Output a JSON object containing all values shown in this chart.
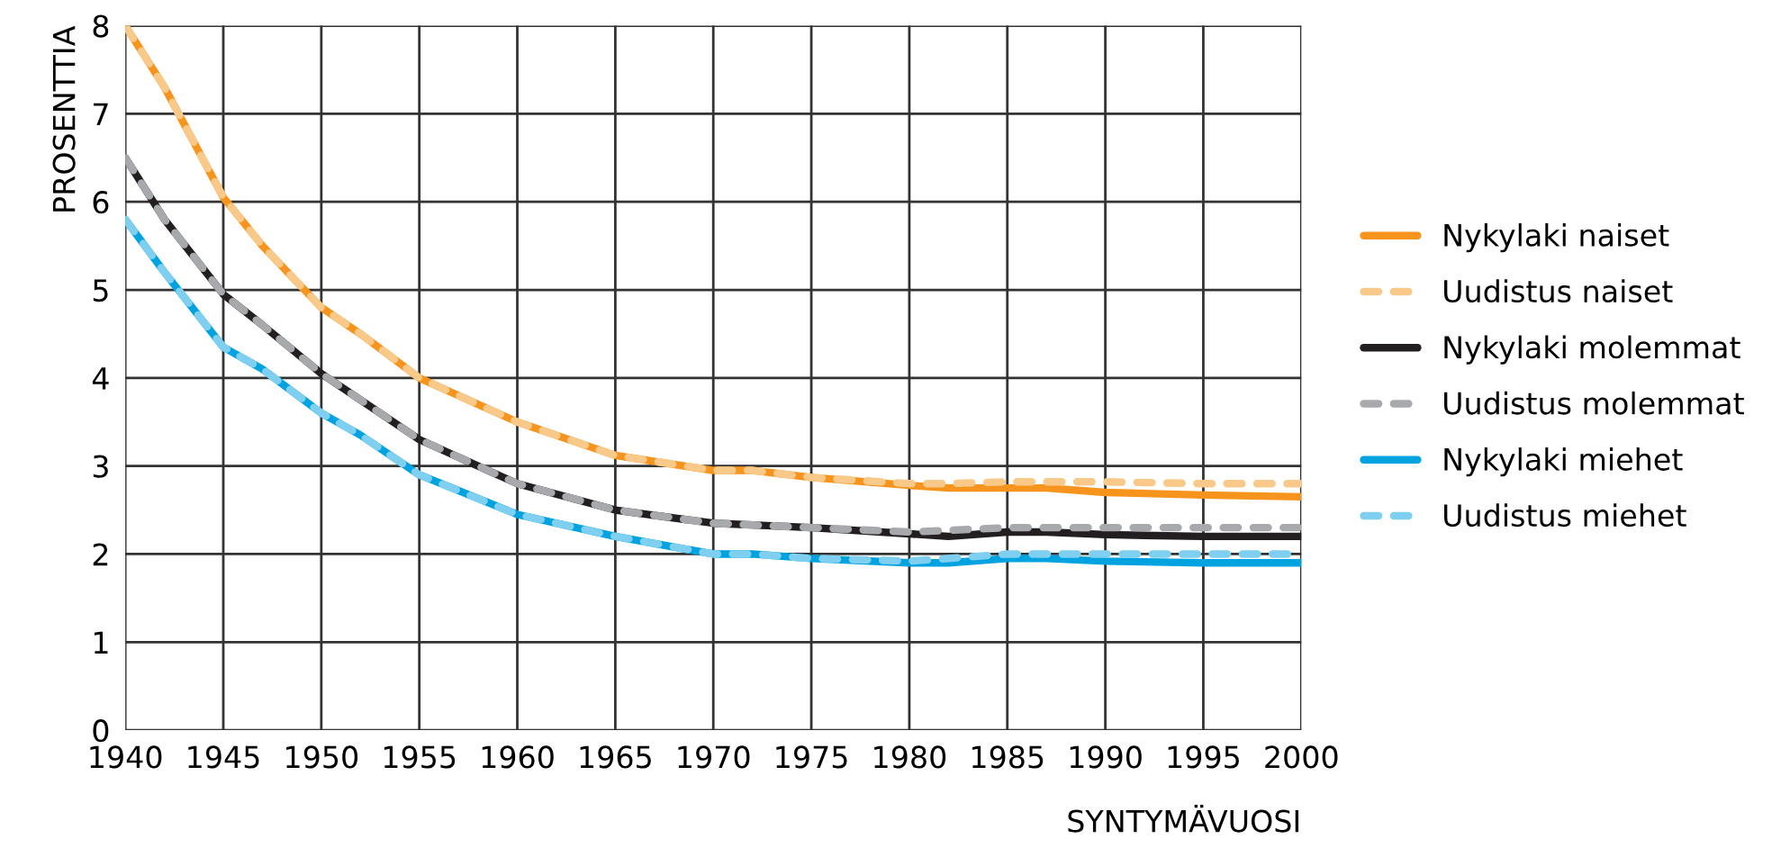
{
  "chart_data": {
    "type": "line",
    "xlabel": "SYNTYMÄVUOSI",
    "ylabel": "PROSENTTIA",
    "xlim": [
      1940,
      2000
    ],
    "ylim": [
      0,
      8
    ],
    "xticks": [
      1940,
      1945,
      1950,
      1955,
      1960,
      1965,
      1970,
      1975,
      1980,
      1985,
      1990,
      1995,
      2000
    ],
    "yticks": [
      0,
      1,
      2,
      3,
      4,
      5,
      6,
      7,
      8
    ],
    "grid": true,
    "legend": "right",
    "marker": "none",
    "x": [
      1940,
      1942,
      1945,
      1947,
      1950,
      1952,
      1955,
      1960,
      1965,
      1970,
      1972,
      1975,
      1980,
      1982,
      1985,
      1987,
      1990,
      1995,
      2000
    ],
    "series": [
      {
        "name": "Nykylaki naiset",
        "color": "#f7941d",
        "line_style": "solid",
        "values": [
          8.0,
          7.3,
          6.05,
          5.5,
          4.8,
          4.5,
          4.0,
          3.5,
          3.12,
          2.95,
          2.95,
          2.87,
          2.78,
          2.75,
          2.75,
          2.75,
          2.7,
          2.67,
          2.65
        ]
      },
      {
        "name": "Uudistus naiset",
        "color": "#f9c98a",
        "line_style": "dashed",
        "values": [
          8.0,
          7.3,
          6.05,
          5.5,
          4.8,
          4.5,
          4.0,
          3.5,
          3.12,
          2.95,
          2.95,
          2.87,
          2.8,
          2.8,
          2.82,
          2.82,
          2.82,
          2.8,
          2.8
        ]
      },
      {
        "name": "Nykylaki molemmat",
        "color": "#231f20",
        "line_style": "solid",
        "values": [
          6.5,
          5.8,
          4.95,
          4.6,
          4.05,
          3.75,
          3.3,
          2.8,
          2.5,
          2.35,
          2.33,
          2.3,
          2.23,
          2.2,
          2.25,
          2.25,
          2.22,
          2.2,
          2.2
        ]
      },
      {
        "name": "Uudistus molemmat",
        "color": "#a7a9ac",
        "line_style": "dashed",
        "values": [
          6.5,
          5.8,
          4.95,
          4.6,
          4.05,
          3.75,
          3.3,
          2.8,
          2.5,
          2.35,
          2.33,
          2.3,
          2.25,
          2.27,
          2.3,
          2.3,
          2.3,
          2.3,
          2.3
        ]
      },
      {
        "name": "Nykylaki miehet",
        "color": "#00a3e0",
        "line_style": "solid",
        "values": [
          5.8,
          5.2,
          4.35,
          4.1,
          3.6,
          3.35,
          2.9,
          2.45,
          2.2,
          2.0,
          2.0,
          1.95,
          1.9,
          1.9,
          1.95,
          1.95,
          1.92,
          1.9,
          1.9
        ]
      },
      {
        "name": "Uudistus miehet",
        "color": "#7fd0f0",
        "line_style": "dashed",
        "values": [
          5.8,
          5.2,
          4.35,
          4.1,
          3.6,
          3.35,
          2.9,
          2.45,
          2.2,
          2.0,
          2.0,
          1.95,
          1.92,
          1.95,
          2.0,
          2.0,
          2.0,
          2.0,
          2.0
        ]
      }
    ]
  }
}
